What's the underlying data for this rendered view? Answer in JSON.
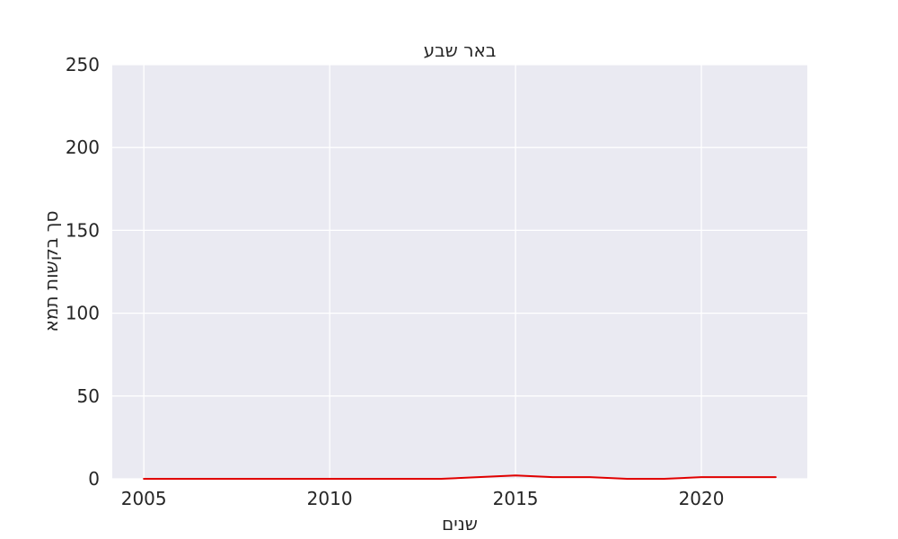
{
  "chart_data": {
    "type": "line",
    "title": "באר שבע",
    "xlabel": "שנים",
    "ylabel": "סך בקשות תמא",
    "x": [
      2005,
      2006,
      2007,
      2008,
      2009,
      2010,
      2011,
      2012,
      2013,
      2014,
      2015,
      2016,
      2017,
      2018,
      2019,
      2020,
      2021,
      2022
    ],
    "series": [
      {
        "values": [
          0,
          0,
          0,
          0,
          0,
          0,
          0,
          0,
          0,
          1,
          2,
          1,
          1,
          0,
          0,
          1,
          1,
          1
        ],
        "color": "#e00000"
      }
    ],
    "xlim": [
      2004.15,
      2022.85
    ],
    "ylim": [
      0,
      250
    ],
    "xticks": [
      2005,
      2010,
      2015,
      2020
    ],
    "yticks": [
      0,
      50,
      100,
      150,
      200,
      250
    ],
    "grid": true,
    "plot_background": "#eaeaf2",
    "grid_color": "#ffffff"
  }
}
